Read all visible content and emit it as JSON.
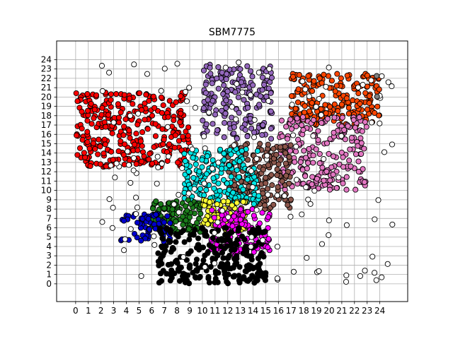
{
  "chart_data": {
    "type": "scatter",
    "title": "SBM7775",
    "xlabel": "",
    "ylabel": "",
    "xlim": [
      -1.5,
      26.2
    ],
    "ylim": [
      -1.9,
      26.0
    ],
    "x_ticks": [
      0,
      1,
      2,
      3,
      4,
      5,
      6,
      7,
      8,
      9,
      10,
      11,
      12,
      13,
      14,
      15,
      16,
      17,
      18,
      19,
      20,
      21,
      22,
      23,
      24
    ],
    "y_ticks": [
      0,
      1,
      2,
      3,
      4,
      5,
      6,
      7,
      8,
      9,
      10,
      11,
      12,
      13,
      14,
      15,
      16,
      17,
      18,
      19,
      20,
      21,
      22,
      23,
      24
    ],
    "grid": true,
    "legend": "none",
    "marker_edge_color": "#000000",
    "clusters": [
      {
        "color": "#ff0000",
        "x_range": [
          0,
          9
        ],
        "y_range": [
          12.5,
          20.5
        ],
        "count": 320
      },
      {
        "color": "#9467bd",
        "x_range": [
          10,
          15.5
        ],
        "y_range": [
          15.5,
          23.5
        ],
        "count": 190
      },
      {
        "color": "#ff4500",
        "x_range": [
          17,
          24
        ],
        "y_range": [
          17,
          22.5
        ],
        "count": 200
      },
      {
        "color": "#e377c2",
        "x_range": [
          16,
          23
        ],
        "y_range": [
          10,
          18
        ],
        "count": 220
      },
      {
        "color": "#8c564b",
        "x_range": [
          12,
          17
        ],
        "y_range": [
          8,
          15
        ],
        "count": 180
      },
      {
        "color": "#00e5e5",
        "x_range": [
          8.5,
          14.5
        ],
        "y_range": [
          8.5,
          14.5
        ],
        "count": 180
      },
      {
        "color": "#1b7d1b",
        "x_range": [
          6,
          10
        ],
        "y_range": [
          5.5,
          9
        ],
        "count": 110
      },
      {
        "color": "#ffff33",
        "x_range": [
          10,
          13.5
        ],
        "y_range": [
          5.5,
          9
        ],
        "count": 80
      },
      {
        "color": "#ff00ff",
        "x_range": [
          10.5,
          15.5
        ],
        "y_range": [
          3,
          8
        ],
        "count": 130
      },
      {
        "color": "#0000cd",
        "x_range": [
          3.5,
          7.5
        ],
        "y_range": [
          4.5,
          7.5
        ],
        "count": 70
      },
      {
        "color": "#000000",
        "x_range": [
          6.5,
          15
        ],
        "y_range": [
          0,
          6
        ],
        "count": 260
      },
      {
        "color": "#ffffff",
        "x_range": [
          2,
          25
        ],
        "y_range": [
          0,
          24
        ],
        "count": 150
      },
      {
        "color": "#808080",
        "x_range": [
          23,
          24
        ],
        "y_range": [
          17,
          24.5
        ],
        "count": 2
      }
    ]
  }
}
